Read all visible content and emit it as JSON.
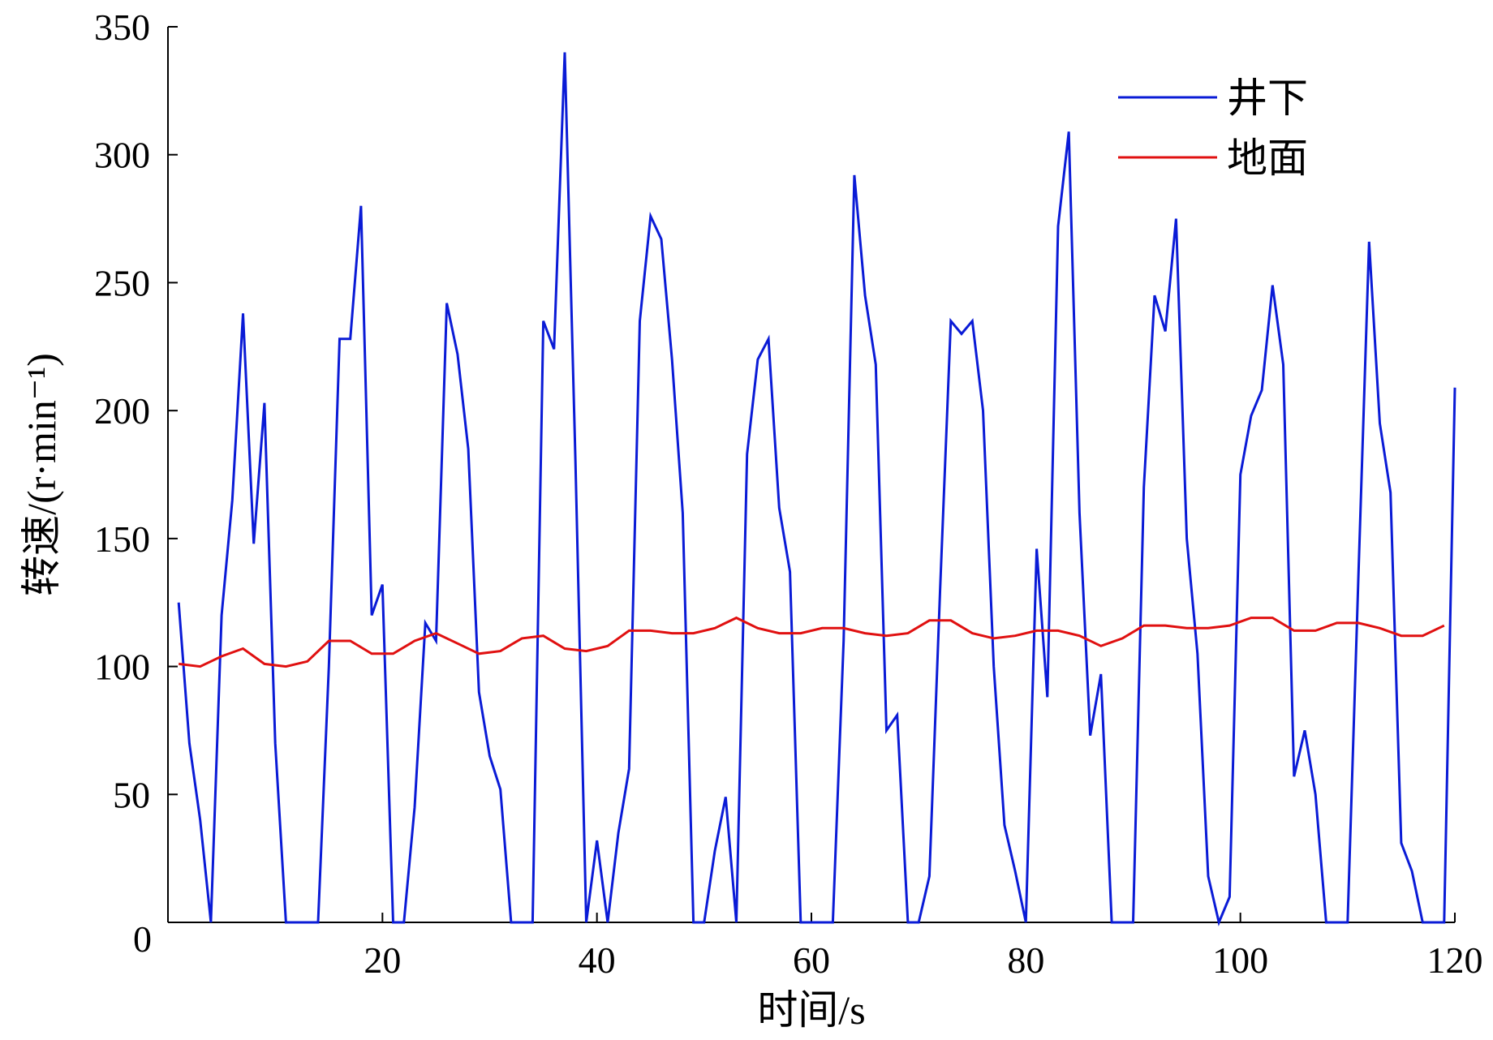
{
  "chart_data": {
    "type": "line",
    "title": "",
    "xlabel": "时间/s",
    "ylabel": "转速/(r·min⁻¹)",
    "xlim": [
      0,
      120
    ],
    "ylim": [
      0,
      350
    ],
    "xticks": [
      0,
      20,
      40,
      60,
      80,
      100,
      120
    ],
    "yticks": [
      0,
      50,
      100,
      150,
      200,
      250,
      300,
      350
    ],
    "grid": false,
    "legend": "top-right",
    "series": [
      {
        "name": "井下",
        "color": "#0a1bd6",
        "points": [
          [
            1,
            125
          ],
          [
            2,
            70
          ],
          [
            3,
            40
          ],
          [
            4,
            0
          ],
          [
            5,
            120
          ],
          [
            6,
            165
          ],
          [
            7,
            238
          ],
          [
            8,
            148
          ],
          [
            9,
            203
          ],
          [
            10,
            70
          ],
          [
            11,
            0
          ],
          [
            12,
            0
          ],
          [
            13,
            0
          ],
          [
            14,
            0
          ],
          [
            15,
            100
          ],
          [
            16,
            228
          ],
          [
            17,
            228
          ],
          [
            18,
            280
          ],
          [
            19,
            120
          ],
          [
            20,
            132
          ],
          [
            21,
            0
          ],
          [
            22,
            0
          ],
          [
            23,
            45
          ],
          [
            24,
            117
          ],
          [
            25,
            110
          ],
          [
            26,
            242
          ],
          [
            27,
            222
          ],
          [
            28,
            185
          ],
          [
            29,
            90
          ],
          [
            30,
            65
          ],
          [
            31,
            52
          ],
          [
            32,
            0
          ],
          [
            33,
            0
          ],
          [
            34,
            0
          ],
          [
            35,
            235
          ],
          [
            36,
            224
          ],
          [
            37,
            340
          ],
          [
            38,
            180
          ],
          [
            39,
            0
          ],
          [
            40,
            32
          ],
          [
            41,
            0
          ],
          [
            42,
            35
          ],
          [
            43,
            60
          ],
          [
            44,
            235
          ],
          [
            45,
            276
          ],
          [
            46,
            267
          ],
          [
            47,
            220
          ],
          [
            48,
            160
          ],
          [
            49,
            0
          ],
          [
            50,
            0
          ],
          [
            51,
            28
          ],
          [
            52,
            49
          ],
          [
            53,
            0
          ],
          [
            54,
            183
          ],
          [
            55,
            220
          ],
          [
            56,
            228
          ],
          [
            57,
            162
          ],
          [
            58,
            137
          ],
          [
            59,
            0
          ],
          [
            60,
            0
          ],
          [
            61,
            0
          ],
          [
            62,
            0
          ],
          [
            63,
            110
          ],
          [
            64,
            292
          ],
          [
            65,
            245
          ],
          [
            66,
            218
          ],
          [
            67,
            75
          ],
          [
            68,
            81
          ],
          [
            69,
            0
          ],
          [
            70,
            0
          ],
          [
            71,
            18
          ],
          [
            72,
            130
          ],
          [
            73,
            235
          ],
          [
            74,
            230
          ],
          [
            75,
            235
          ],
          [
            76,
            200
          ],
          [
            77,
            100
          ],
          [
            78,
            38
          ],
          [
            79,
            20
          ],
          [
            80,
            0
          ],
          [
            81,
            146
          ],
          [
            82,
            88
          ],
          [
            83,
            272
          ],
          [
            84,
            309
          ],
          [
            85,
            160
          ],
          [
            86,
            73
          ],
          [
            87,
            97
          ],
          [
            88,
            0
          ],
          [
            89,
            0
          ],
          [
            90,
            0
          ],
          [
            91,
            170
          ],
          [
            92,
            245
          ],
          [
            93,
            231
          ],
          [
            94,
            275
          ],
          [
            95,
            150
          ],
          [
            96,
            105
          ],
          [
            97,
            18
          ],
          [
            98,
            0
          ],
          [
            99,
            10
          ],
          [
            100,
            175
          ],
          [
            101,
            198
          ],
          [
            102,
            208
          ],
          [
            103,
            249
          ],
          [
            104,
            218
          ],
          [
            105,
            57
          ],
          [
            106,
            75
          ],
          [
            107,
            50
          ],
          [
            108,
            0
          ],
          [
            109,
            0
          ],
          [
            110,
            0
          ],
          [
            111,
            135
          ],
          [
            112,
            266
          ],
          [
            113,
            195
          ],
          [
            114,
            168
          ],
          [
            115,
            31
          ],
          [
            116,
            20
          ],
          [
            117,
            0
          ],
          [
            118,
            0
          ],
          [
            119,
            0
          ],
          [
            120,
            209
          ]
        ]
      },
      {
        "name": "地面",
        "color": "#e01010",
        "points": [
          [
            1,
            101
          ],
          [
            3,
            100
          ],
          [
            5,
            104
          ],
          [
            7,
            107
          ],
          [
            9,
            101
          ],
          [
            11,
            100
          ],
          [
            13,
            102
          ],
          [
            15,
            110
          ],
          [
            17,
            110
          ],
          [
            19,
            105
          ],
          [
            21,
            105
          ],
          [
            23,
            110
          ],
          [
            25,
            113
          ],
          [
            27,
            109
          ],
          [
            29,
            105
          ],
          [
            31,
            106
          ],
          [
            33,
            111
          ],
          [
            35,
            112
          ],
          [
            37,
            107
          ],
          [
            39,
            106
          ],
          [
            41,
            108
          ],
          [
            43,
            114
          ],
          [
            45,
            114
          ],
          [
            47,
            113
          ],
          [
            49,
            113
          ],
          [
            51,
            115
          ],
          [
            53,
            119
          ],
          [
            55,
            115
          ],
          [
            57,
            113
          ],
          [
            59,
            113
          ],
          [
            61,
            115
          ],
          [
            63,
            115
          ],
          [
            65,
            113
          ],
          [
            67,
            112
          ],
          [
            69,
            113
          ],
          [
            71,
            118
          ],
          [
            73,
            118
          ],
          [
            75,
            113
          ],
          [
            77,
            111
          ],
          [
            79,
            112
          ],
          [
            81,
            114
          ],
          [
            83,
            114
          ],
          [
            85,
            112
          ],
          [
            87,
            108
          ],
          [
            89,
            111
          ],
          [
            91,
            116
          ],
          [
            93,
            116
          ],
          [
            95,
            115
          ],
          [
            97,
            115
          ],
          [
            99,
            116
          ],
          [
            101,
            119
          ],
          [
            103,
            119
          ],
          [
            105,
            114
          ],
          [
            107,
            114
          ],
          [
            109,
            117
          ],
          [
            111,
            117
          ],
          [
            113,
            115
          ],
          [
            115,
            112
          ],
          [
            117,
            112
          ],
          [
            119,
            116
          ]
        ]
      }
    ]
  }
}
